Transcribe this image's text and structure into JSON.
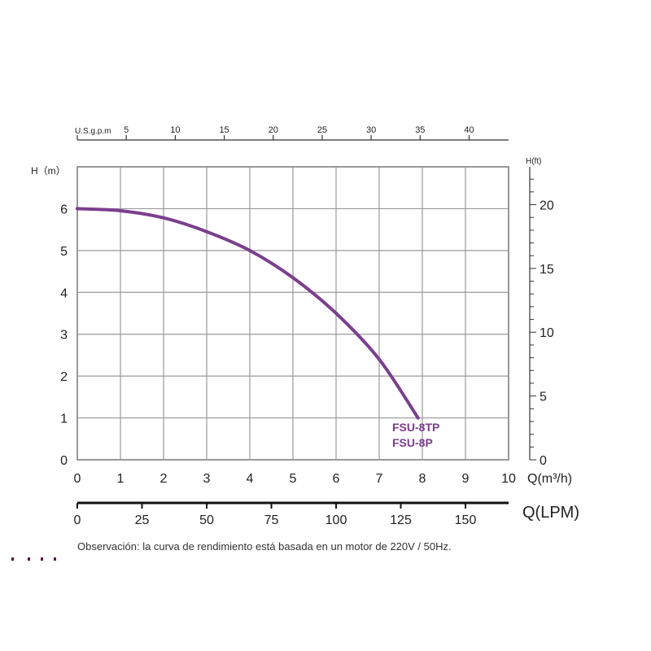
{
  "chart_data": {
    "type": "line",
    "x_axis_bottom": {
      "label": "Q(m³/h)",
      "range": [
        0,
        10
      ],
      "ticks": [
        "0",
        "1",
        "2",
        "3",
        "4",
        "5",
        "6",
        "7",
        "8",
        "9",
        "10"
      ]
    },
    "y_axis_left": {
      "label": "H（m）",
      "range": [
        0,
        7
      ],
      "ticks": [
        "0",
        "1",
        "2",
        "3",
        "4",
        "5",
        "6"
      ]
    },
    "y_axis_right": {
      "label": "H(ft)",
      "ticks": [
        "0",
        "5",
        "10",
        "15",
        "20"
      ]
    },
    "x_axis_top": {
      "label": "U.S.g.p.m",
      "ticks": [
        "5",
        "10",
        "15",
        "20",
        "25",
        "30",
        "35",
        "40"
      ]
    },
    "x_axis_lpm": {
      "label": "Q(LPM)",
      "ticks": [
        "0",
        "25",
        "50",
        "75",
        "100",
        "125",
        "150"
      ]
    },
    "grid": true,
    "series": [
      {
        "name": "FSU-8TP",
        "name2": "FSU-8P",
        "color": "#7b3f8e",
        "x": [
          0,
          1,
          2,
          3,
          4,
          5,
          6,
          7,
          7.9
        ],
        "y": [
          6.0,
          5.95,
          5.78,
          5.45,
          5.0,
          4.35,
          3.5,
          2.4,
          1.0
        ]
      }
    ]
  },
  "note": "Observación: la curva de rendimiento está basada en un motor de 220V / 50Hz."
}
